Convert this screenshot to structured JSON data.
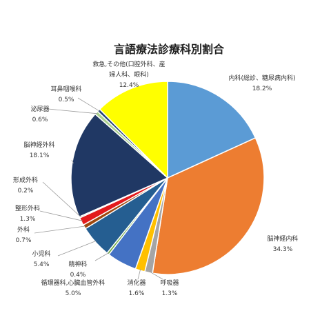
{
  "chart_data": {
    "type": "pie",
    "title": "言語療法診療科別割合",
    "slices": [
      {
        "lines": [
          "内科(総診、糖尿病内科)"
        ],
        "pct": "18.2%",
        "value": 18.2,
        "color": "#5B9BD5"
      },
      {
        "lines": [
          "脳神経内科"
        ],
        "pct": "34.3%",
        "value": 34.3,
        "color": "#ED7D31"
      },
      {
        "lines": [
          "呼吸器"
        ],
        "pct": "1.3%",
        "value": 1.3,
        "color": "#A5A5A5"
      },
      {
        "lines": [
          "消化器"
        ],
        "pct": "1.6%",
        "value": 1.6,
        "color": "#FFC000"
      },
      {
        "lines": [
          "循環器科,心臓血管外科"
        ],
        "pct": "5.0%",
        "value": 5.0,
        "color": "#4472C4"
      },
      {
        "lines": [
          "精神科"
        ],
        "pct": "0.4%",
        "value": 0.4,
        "color": "#70AD47"
      },
      {
        "lines": [
          "小児科"
        ],
        "pct": "5.4%",
        "value": 5.4,
        "color": "#255E91"
      },
      {
        "lines": [
          "外科"
        ],
        "pct": "0.7%",
        "value": 0.7,
        "color": "#9E480E"
      },
      {
        "lines": [
          "整形外科"
        ],
        "pct": "1.3%",
        "value": 1.3,
        "color": "#E31A1C"
      },
      {
        "lines": [
          "形成外科"
        ],
        "pct": "0.2%",
        "value": 0.2,
        "color": "#43682B"
      },
      {
        "lines": [
          "脳神経外科"
        ],
        "pct": "18.1%",
        "value": 18.1,
        "color": "#203864"
      },
      {
        "lines": [
          "泌尿器"
        ],
        "pct": "0.6%",
        "value": 0.6,
        "color": "#A9D18E"
      },
      {
        "lines": [
          "耳鼻咽喉科"
        ],
        "pct": "0.5%",
        "value": 0.5,
        "color": "#264478"
      },
      {
        "lines": [
          "救急,その他(口腔外科、産",
          "婦人科、眼科)"
        ],
        "pct": "12.4%",
        "value": 12.4,
        "color": "#FFFF00"
      }
    ]
  }
}
